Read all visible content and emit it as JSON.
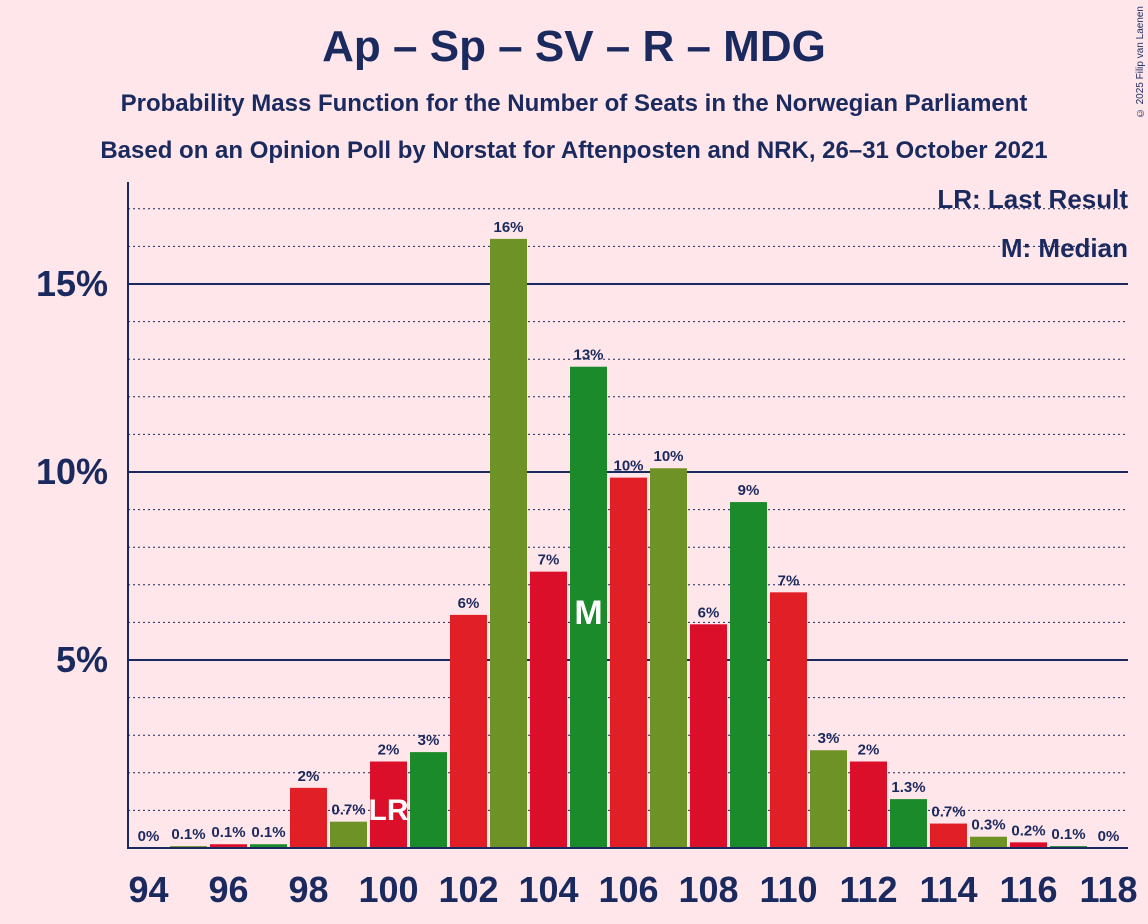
{
  "title": "Ap – Sp – SV – R – MDG",
  "subtitle1": "Probability Mass Function for the Number of Seats in the Norwegian Parliament",
  "subtitle2": "Based on an Opinion Poll by Norstat for Aftenposten and NRK, 26–31 October 2021",
  "copyright": "© 2025 Filip van Laenen",
  "legend": {
    "last_result": "LR: Last Result",
    "median": "M: Median"
  },
  "colors": {
    "background": "#ffe6ea",
    "red1": "#e11f26",
    "red2": "#dc0f2b",
    "green1": "#1b8a2a",
    "green2": "#6e9226",
    "axis": "#1a2a5e"
  },
  "chart_data": {
    "type": "bar",
    "x": [
      94,
      95,
      96,
      97,
      98,
      99,
      100,
      101,
      102,
      103,
      104,
      105,
      106,
      107,
      108,
      109,
      110,
      111,
      112,
      113,
      114,
      115,
      116,
      117,
      118
    ],
    "values": [
      0,
      0.05,
      0.1,
      0.1,
      1.6,
      0.7,
      2.3,
      2.55,
      6.2,
      16.2,
      7.35,
      12.8,
      9.85,
      10.1,
      5.95,
      9.2,
      6.8,
      2.6,
      2.3,
      1.3,
      0.65,
      0.3,
      0.15,
      0.05,
      0
    ],
    "labels": [
      "0%",
      "0.1%",
      "0.1%",
      "0.1%",
      "2%",
      "0.7%",
      "2%",
      "3%",
      "6%",
      "16%",
      "7%",
      "13%",
      "10%",
      "10%",
      "6%",
      "9%",
      "7%",
      "3%",
      "2%",
      "1.3%",
      "0.7%",
      "0.3%",
      "0.2%",
      "0.1%",
      "0%"
    ],
    "x_tick_labels": [
      "94",
      "96",
      "98",
      "100",
      "102",
      "104",
      "106",
      "108",
      "110",
      "112",
      "114",
      "116",
      "118"
    ],
    "y_tick_labels": [
      "5%",
      "10%",
      "15%"
    ],
    "y_ticks": [
      5,
      10,
      15
    ],
    "ylim": [
      0,
      17.6
    ],
    "last_result": 100,
    "last_result_label": "LR",
    "median": 105,
    "median_label": "M",
    "grid": true
  }
}
